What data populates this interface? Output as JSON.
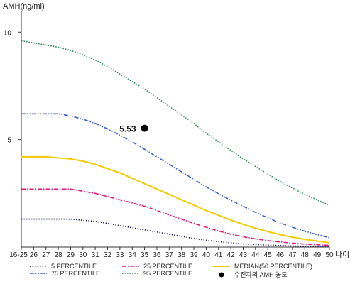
{
  "chart_data": {
    "type": "line",
    "ylabel": "AMH(ng/ml)",
    "xlabel": "나이",
    "categories": [
      "16-25",
      "26",
      "27",
      "28",
      "29",
      "30",
      "31",
      "32",
      "33",
      "34",
      "35",
      "36",
      "37",
      "38",
      "39",
      "40",
      "41",
      "42",
      "43",
      "44",
      "45",
      "46",
      "47",
      "48",
      "49",
      "50"
    ],
    "ylim": [
      0,
      11
    ],
    "yticks": [
      5,
      10
    ],
    "grid": false,
    "legend_position": "bottom",
    "series": [
      {
        "name": "5 PERCENTILE",
        "color": "#1a1a6e",
        "dash": "dotted",
        "values": [
          1.3,
          1.3,
          1.3,
          1.3,
          1.3,
          1.25,
          1.2,
          1.1,
          1.0,
          0.9,
          0.8,
          0.7,
          0.6,
          0.5,
          0.4,
          0.32,
          0.25,
          0.2,
          0.15,
          0.12,
          0.09,
          0.07,
          0.05,
          0.04,
          0.03,
          0.02
        ]
      },
      {
        "name": "25 PERCENTILE",
        "color": "#e0187a",
        "dash": "dashdot",
        "values": [
          2.7,
          2.7,
          2.7,
          2.7,
          2.7,
          2.6,
          2.5,
          2.35,
          2.2,
          2.05,
          1.9,
          1.7,
          1.5,
          1.3,
          1.1,
          0.92,
          0.75,
          0.6,
          0.48,
          0.38,
          0.3,
          0.24,
          0.18,
          0.14,
          0.11,
          0.08
        ]
      },
      {
        "name": "MEDIAN(50 PERCENTILE)",
        "color": "#f2cc00",
        "dash": "solid",
        "values": [
          4.2,
          4.2,
          4.2,
          4.15,
          4.1,
          4.0,
          3.85,
          3.65,
          3.45,
          3.2,
          2.95,
          2.7,
          2.45,
          2.2,
          1.95,
          1.7,
          1.48,
          1.26,
          1.06,
          0.88,
          0.72,
          0.58,
          0.46,
          0.36,
          0.28,
          0.2
        ]
      },
      {
        "name": "75 PERCENTILE",
        "color": "#3a5fcd",
        "dash": "dashdotdot",
        "values": [
          6.2,
          6.2,
          6.2,
          6.2,
          6.1,
          5.95,
          5.75,
          5.5,
          5.2,
          4.9,
          4.55,
          4.2,
          3.85,
          3.5,
          3.15,
          2.8,
          2.48,
          2.18,
          1.9,
          1.62,
          1.36,
          1.12,
          0.92,
          0.74,
          0.58,
          0.44
        ]
      },
      {
        "name": "95 PERCENTILE",
        "color": "#2e8b57",
        "dash": "dotted",
        "values": [
          9.6,
          9.5,
          9.4,
          9.3,
          9.15,
          8.95,
          8.7,
          8.4,
          8.05,
          7.7,
          7.35,
          6.95,
          6.55,
          6.15,
          5.75,
          5.3,
          4.9,
          4.5,
          4.1,
          3.75,
          3.4,
          3.05,
          2.75,
          2.45,
          2.2,
          1.95
        ]
      }
    ],
    "points": [
      {
        "name": "수진자의 AMH 농도",
        "x": "35",
        "y": 5.53,
        "label": "5.53",
        "color": "#000000"
      }
    ]
  }
}
